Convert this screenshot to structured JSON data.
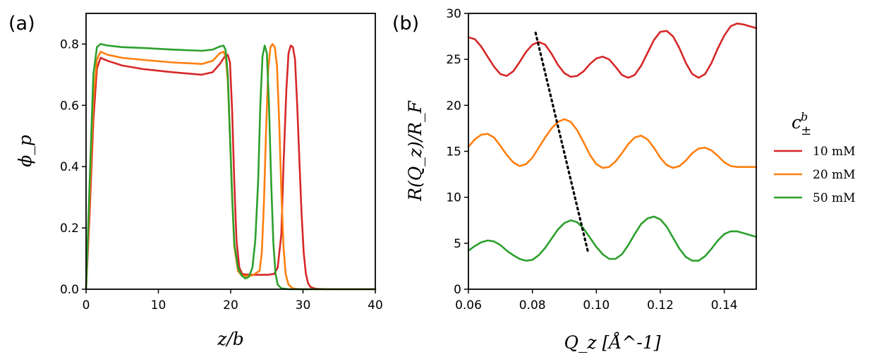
{
  "figure": {
    "panel_a_label": "(a)",
    "panel_b_label": "(b)",
    "legend_title": "c",
    "legend_title_superscript": "b",
    "legend_title_subscript": "±"
  },
  "chart_data": [
    {
      "type": "line",
      "panel": "a",
      "title": "",
      "xlabel": "z/b",
      "ylabel": "ϕ_p",
      "xlim": [
        0,
        40
      ],
      "ylim": [
        0.0,
        0.9
      ],
      "xticks": [
        0,
        10,
        20,
        30,
        40
      ],
      "xtick_labels": [
        "0",
        "10",
        "20",
        "30",
        "40"
      ],
      "yticks": [
        0.0,
        0.2,
        0.4,
        0.6,
        0.8
      ],
      "ytick_labels": [
        "0.0",
        "0.2",
        "0.4",
        "0.6",
        "0.8"
      ],
      "grid": false,
      "series": [
        {
          "name": "10 mM",
          "color": "#d62728",
          "x": [
            0,
            0.5,
            1,
            1.5,
            2,
            3,
            5,
            8,
            12,
            16,
            17.5,
            18.5,
            19.2,
            19.6,
            19.9,
            20.2,
            20.5,
            20.8,
            21.2,
            21.6,
            22,
            23,
            24,
            25,
            26,
            26.5,
            27,
            27.3,
            27.7,
            28,
            28.3,
            28.6,
            28.9,
            29.2,
            29.5,
            29.8,
            30.1,
            30.4,
            30.7,
            31,
            31.5,
            32,
            34,
            40
          ],
          "y": [
            0,
            0.25,
            0.55,
            0.72,
            0.755,
            0.745,
            0.73,
            0.718,
            0.708,
            0.7,
            0.708,
            0.735,
            0.76,
            0.765,
            0.74,
            0.58,
            0.35,
            0.16,
            0.07,
            0.05,
            0.048,
            0.047,
            0.047,
            0.047,
            0.05,
            0.07,
            0.18,
            0.4,
            0.65,
            0.77,
            0.795,
            0.79,
            0.75,
            0.6,
            0.42,
            0.25,
            0.12,
            0.05,
            0.02,
            0.008,
            0.003,
            0.001,
            0,
            0
          ]
        },
        {
          "name": "20 mM",
          "color": "#ff7f0e",
          "x": [
            0,
            0.5,
            1,
            1.5,
            2,
            3,
            5,
            8,
            12,
            16,
            17.5,
            18.5,
            19,
            19.3,
            19.6,
            19.9,
            20.2,
            20.5,
            21,
            21.5,
            22,
            23,
            24,
            24.3,
            24.6,
            24.9,
            25.2,
            25.5,
            25.8,
            26.1,
            26.4,
            26.7,
            27,
            27.3,
            27.6,
            28,
            28.5,
            29,
            30,
            32,
            40
          ],
          "y": [
            0,
            0.3,
            0.62,
            0.75,
            0.775,
            0.765,
            0.755,
            0.748,
            0.74,
            0.735,
            0.745,
            0.77,
            0.775,
            0.76,
            0.68,
            0.5,
            0.3,
            0.14,
            0.06,
            0.045,
            0.043,
            0.045,
            0.06,
            0.12,
            0.28,
            0.52,
            0.72,
            0.79,
            0.8,
            0.79,
            0.73,
            0.55,
            0.32,
            0.14,
            0.05,
            0.015,
            0.004,
            0.001,
            0,
            0,
            0
          ]
        },
        {
          "name": "50 mM",
          "color": "#2ca02c",
          "x": [
            0,
            0.5,
            1,
            1.5,
            2,
            3,
            5,
            8,
            12,
            16,
            17.5,
            18.5,
            19,
            19.3,
            19.6,
            19.9,
            20.2,
            20.5,
            21,
            21.5,
            22,
            22.5,
            23,
            23.4,
            23.8,
            24.1,
            24.4,
            24.7,
            25,
            25.3,
            25.6,
            25.9,
            26.2,
            26.5,
            27,
            28,
            30,
            40
          ],
          "y": [
            0,
            0.35,
            0.7,
            0.79,
            0.8,
            0.795,
            0.79,
            0.787,
            0.782,
            0.778,
            0.782,
            0.792,
            0.795,
            0.78,
            0.7,
            0.5,
            0.3,
            0.15,
            0.07,
            0.045,
            0.035,
            0.04,
            0.07,
            0.16,
            0.35,
            0.6,
            0.76,
            0.795,
            0.77,
            0.6,
            0.35,
            0.15,
            0.05,
            0.015,
            0.003,
            0,
            0,
            0
          ]
        }
      ]
    },
    {
      "type": "line",
      "panel": "b",
      "title": "",
      "xlabel": "Q_z [Å^-1]",
      "ylabel": "R(Q_z)/R_F",
      "xlim": [
        0.06,
        0.15
      ],
      "ylim": [
        0,
        30
      ],
      "xticks": [
        0.06,
        0.08,
        0.1,
        0.12,
        0.14
      ],
      "xtick_labels": [
        "0.06",
        "0.08",
        "0.10",
        "0.12",
        "0.14"
      ],
      "yticks": [
        0,
        5,
        10,
        15,
        20,
        25,
        30
      ],
      "ytick_labels": [
        "0",
        "5",
        "10",
        "15",
        "20",
        "25",
        "30"
      ],
      "grid": false,
      "legend_position": "right, outside",
      "series": [
        {
          "name": "10 mM",
          "color": "#d62728",
          "x": [
            0.06,
            0.062,
            0.064,
            0.066,
            0.068,
            0.07,
            0.072,
            0.074,
            0.076,
            0.078,
            0.08,
            0.082,
            0.084,
            0.086,
            0.088,
            0.09,
            0.092,
            0.094,
            0.096,
            0.098,
            0.1,
            0.102,
            0.104,
            0.106,
            0.108,
            0.11,
            0.112,
            0.114,
            0.116,
            0.118,
            0.12,
            0.122,
            0.124,
            0.126,
            0.128,
            0.13,
            0.132,
            0.134,
            0.136,
            0.138,
            0.14,
            0.142,
            0.144,
            0.146,
            0.148,
            0.15
          ],
          "y": [
            27.4,
            27.2,
            26.4,
            25.3,
            24.2,
            23.4,
            23.2,
            23.7,
            24.7,
            25.8,
            26.6,
            26.9,
            26.6,
            25.6,
            24.4,
            23.5,
            23.1,
            23.2,
            23.7,
            24.5,
            25.1,
            25.3,
            25.0,
            24.2,
            23.3,
            23.0,
            23.3,
            24.3,
            25.7,
            27.1,
            28.0,
            28.1,
            27.5,
            26.2,
            24.6,
            23.4,
            23.0,
            23.4,
            24.6,
            26.2,
            27.6,
            28.6,
            28.9,
            28.8,
            28.6,
            28.4
          ]
        },
        {
          "name": "20 mM",
          "color": "#ff7f0e",
          "x": [
            0.06,
            0.062,
            0.064,
            0.066,
            0.068,
            0.07,
            0.072,
            0.074,
            0.076,
            0.078,
            0.08,
            0.082,
            0.084,
            0.086,
            0.088,
            0.09,
            0.092,
            0.094,
            0.096,
            0.098,
            0.1,
            0.102,
            0.104,
            0.106,
            0.108,
            0.11,
            0.112,
            0.114,
            0.116,
            0.118,
            0.12,
            0.122,
            0.124,
            0.126,
            0.128,
            0.13,
            0.132,
            0.134,
            0.136,
            0.138,
            0.14,
            0.142,
            0.144,
            0.146,
            0.148,
            0.15
          ],
          "y": [
            15.5,
            16.3,
            16.8,
            16.9,
            16.5,
            15.6,
            14.6,
            13.8,
            13.4,
            13.6,
            14.3,
            15.4,
            16.5,
            17.5,
            18.2,
            18.5,
            18.2,
            17.3,
            16.0,
            14.6,
            13.6,
            13.2,
            13.3,
            13.9,
            14.8,
            15.8,
            16.5,
            16.7,
            16.3,
            15.4,
            14.3,
            13.5,
            13.2,
            13.4,
            14.0,
            14.8,
            15.3,
            15.4,
            15.1,
            14.5,
            13.8,
            13.4,
            13.3,
            13.3,
            13.3,
            13.3
          ]
        },
        {
          "name": "50 mM",
          "color": "#2ca02c",
          "x": [
            0.06,
            0.062,
            0.064,
            0.066,
            0.068,
            0.07,
            0.072,
            0.074,
            0.076,
            0.078,
            0.08,
            0.082,
            0.084,
            0.086,
            0.088,
            0.09,
            0.092,
            0.094,
            0.096,
            0.098,
            0.1,
            0.102,
            0.104,
            0.106,
            0.108,
            0.11,
            0.112,
            0.114,
            0.116,
            0.118,
            0.12,
            0.122,
            0.124,
            0.126,
            0.128,
            0.13,
            0.132,
            0.134,
            0.136,
            0.138,
            0.14,
            0.142,
            0.144,
            0.146,
            0.148,
            0.15
          ],
          "y": [
            4.2,
            4.7,
            5.1,
            5.3,
            5.2,
            4.8,
            4.2,
            3.7,
            3.3,
            3.1,
            3.2,
            3.7,
            4.5,
            5.5,
            6.5,
            7.2,
            7.5,
            7.3,
            6.6,
            5.6,
            4.6,
            3.8,
            3.3,
            3.3,
            3.8,
            4.8,
            6.0,
            7.1,
            7.7,
            7.9,
            7.6,
            6.8,
            5.6,
            4.4,
            3.5,
            3.1,
            3.1,
            3.6,
            4.4,
            5.3,
            6.0,
            6.3,
            6.3,
            6.1,
            5.9,
            5.7
          ]
        },
        {
          "name": "",
          "style": "dotted",
          "color": "#000000",
          "x": [
            0.081,
            0.0975
          ],
          "y": [
            27.9,
            3.9
          ]
        }
      ]
    }
  ]
}
